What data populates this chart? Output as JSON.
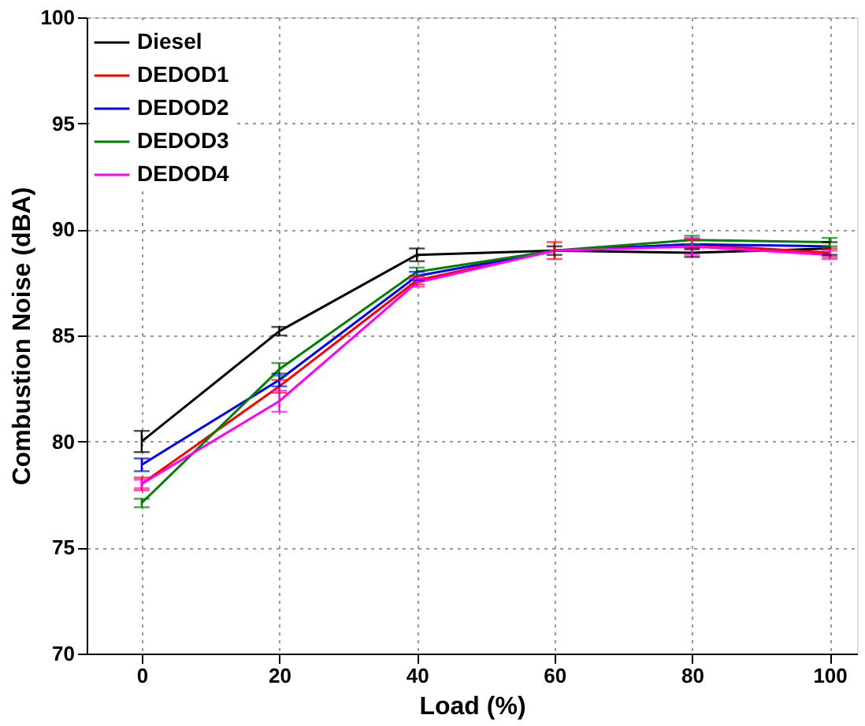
{
  "chart_data": {
    "type": "line",
    "xlabel": "Load (%)",
    "ylabel": "Combustion Noise (dBA)",
    "x": [
      0,
      20,
      40,
      60,
      80,
      100
    ],
    "xlim": [
      -8,
      104
    ],
    "xticks": [
      0,
      20,
      40,
      60,
      80,
      100
    ],
    "ylim": [
      70,
      100
    ],
    "yticks": [
      70,
      75,
      80,
      85,
      90,
      95,
      100
    ],
    "grid": true,
    "legend": "top left",
    "marker": "none",
    "line_style": "solid",
    "series": [
      {
        "name": "Diesel",
        "color": "#000000",
        "values": [
          80.0,
          85.2,
          88.8,
          89.0,
          88.9,
          89.1
        ],
        "errors": [
          0.5,
          0.2,
          0.3,
          0.2,
          0.2,
          0.3
        ]
      },
      {
        "name": "DEDOD1",
        "color": "#ff0000",
        "values": [
          78.0,
          82.6,
          87.6,
          89.0,
          89.3,
          88.9
        ],
        "errors": [
          0.3,
          0.3,
          0.2,
          0.4,
          0.25,
          0.2
        ]
      },
      {
        "name": "DEDOD2",
        "color": "#0000ff",
        "values": [
          78.9,
          82.9,
          87.8,
          89.0,
          89.3,
          89.2
        ],
        "errors": [
          0.3,
          0.3,
          0.2,
          null,
          null,
          null
        ]
      },
      {
        "name": "DEDOD3",
        "color": "#008000",
        "values": [
          77.1,
          83.4,
          88.0,
          89.0,
          89.5,
          89.4
        ],
        "errors": [
          0.2,
          0.3,
          0.2,
          null,
          0.2,
          0.2
        ]
      },
      {
        "name": "DEDOD4",
        "color": "#ff00ff",
        "values": [
          78.0,
          81.9,
          87.5,
          89.0,
          89.2,
          88.8
        ],
        "errors": [
          0.2,
          0.5,
          0.2,
          null,
          0.4,
          0.2
        ]
      }
    ]
  }
}
